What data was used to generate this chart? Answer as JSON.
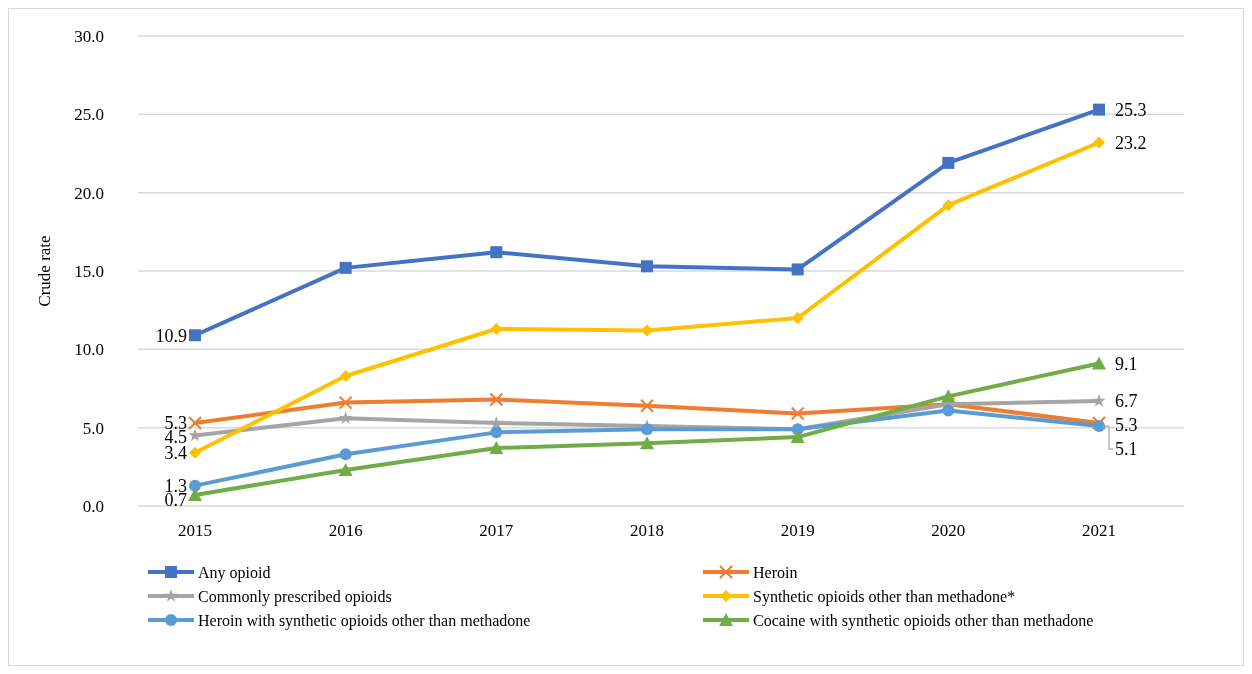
{
  "chart_data": {
    "type": "line",
    "ylabel": "Crude rate",
    "categories": [
      "2015",
      "2016",
      "2017",
      "2018",
      "2019",
      "2020",
      "2021"
    ],
    "ylim": [
      0,
      30
    ],
    "yticks": [
      {
        "value": 0,
        "label": "0.0"
      },
      {
        "value": 5,
        "label": "5.0"
      },
      {
        "value": 10,
        "label": "10.0"
      },
      {
        "value": 15,
        "label": "15.0"
      },
      {
        "value": 20,
        "label": "20.0"
      },
      {
        "value": 25,
        "label": "25.0"
      },
      {
        "value": 30,
        "label": "30.0"
      }
    ],
    "grid": "y",
    "legend": "bottom",
    "line_style": "solid",
    "series": [
      {
        "name": "Any opioid",
        "color": "#4472c4",
        "marker": "square",
        "values": [
          10.9,
          15.2,
          16.2,
          15.3,
          15.1,
          21.9,
          25.3
        ],
        "value_labels": [
          "10.9",
          null,
          null,
          null,
          null,
          null,
          "25.3"
        ]
      },
      {
        "name": "Heroin",
        "color": "#ed7d31",
        "marker": "cross",
        "values": [
          5.3,
          6.6,
          6.8,
          6.4,
          5.9,
          6.5,
          5.3
        ],
        "value_labels": [
          "5.3",
          null,
          null,
          null,
          null,
          null,
          "5.3"
        ]
      },
      {
        "name": "Commonly prescribed opioids",
        "color": "#a5a5a5",
        "marker": "star",
        "values": [
          4.5,
          5.6,
          5.3,
          5.1,
          4.9,
          6.5,
          6.7
        ],
        "value_labels": [
          "4.5",
          null,
          null,
          null,
          null,
          null,
          "6.7"
        ]
      },
      {
        "name": "Synthetic opioids other than methadone*",
        "color": "#ffc000",
        "marker": "diamond",
        "values": [
          3.4,
          8.3,
          11.3,
          11.2,
          12.0,
          19.2,
          23.2
        ],
        "value_labels": [
          "3.4",
          null,
          null,
          null,
          null,
          null,
          "23.2"
        ]
      },
      {
        "name": "Heroin with synthetic opioids other than methadone",
        "color": "#5b9bd5",
        "marker": "circle",
        "values": [
          1.3,
          3.3,
          4.7,
          4.9,
          4.9,
          6.1,
          5.1
        ],
        "value_labels": [
          "1.3",
          null,
          null,
          null,
          null,
          null,
          "5.1"
        ]
      },
      {
        "name": "Cocaine with synthetic opioids other than methadone",
        "color": "#70ad47",
        "marker": "triangle",
        "values": [
          0.7,
          2.3,
          3.7,
          4.0,
          4.4,
          7.0,
          9.1
        ],
        "value_labels": [
          "0.7",
          null,
          null,
          null,
          null,
          null,
          "9.1"
        ]
      }
    ]
  }
}
